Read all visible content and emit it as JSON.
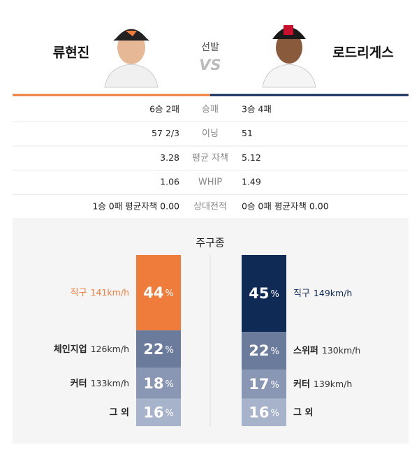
{
  "header": {
    "left_name": "류현진",
    "center_label": "선발",
    "vs": "VS",
    "right_name": "로드리게스",
    "left_color": "#f07c3c",
    "right_color": "#102a56"
  },
  "stats": {
    "rows": [
      {
        "left": "6승 2패",
        "label": "승패",
        "right": "3승 4패"
      },
      {
        "left": "57 2/3",
        "label": "이닝",
        "right": "51"
      },
      {
        "left": "3.28",
        "label": "평균 자책",
        "right": "5.12"
      },
      {
        "left": "1.06",
        "label": "WHIP",
        "right": "1.49"
      },
      {
        "left": "1승 0패 평균자책 0.00",
        "label": "상대전적",
        "right": "0승 0패 평균자책 0.00"
      }
    ]
  },
  "pitch_mix": {
    "title": "주구종",
    "unit": "%",
    "left": {
      "color": "#f07c3c",
      "pitches": [
        {
          "name": "직구",
          "speed": "141km/h",
          "percent": 44
        },
        {
          "name": "체인지업",
          "speed": "126km/h",
          "percent": 22
        },
        {
          "name": "커터",
          "speed": "133km/h",
          "percent": 18
        },
        {
          "name": "그 외",
          "percent": 16
        }
      ]
    },
    "right": {
      "color": "#102a56",
      "pitches": [
        {
          "name": "직구",
          "speed": "149km/h",
          "percent": 45
        },
        {
          "name": "스위퍼",
          "speed": "130km/h",
          "percent": 22
        },
        {
          "name": "커터",
          "speed": "139km/h",
          "percent": 17
        },
        {
          "name": "그 외",
          "percent": 16
        }
      ]
    },
    "other_colors": [
      "#6b7b9c",
      "#8997b5",
      "#a7b3cb"
    ]
  }
}
